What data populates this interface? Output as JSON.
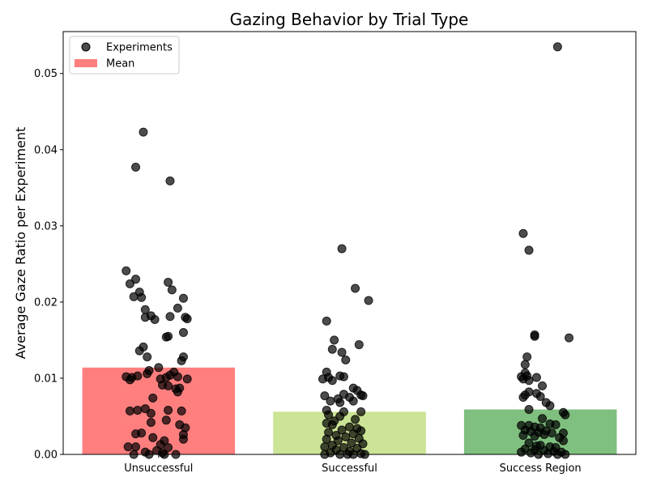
{
  "chart_data": {
    "type": "bar",
    "title": "Gazing Behavior by Trial Type",
    "xlabel": "",
    "ylabel": "Average Gaze Ratio per Experiment",
    "categories": [
      "Unsuccessful",
      "Successful",
      "Success Region"
    ],
    "ylim": [
      0,
      0.0555
    ],
    "yticks": [
      "0.00",
      "0.01",
      "0.02",
      "0.03",
      "0.04",
      "0.05"
    ],
    "grid": false,
    "legend_position": "top-left",
    "legend": [
      {
        "label": "Experiments",
        "marker": "circle",
        "color": "#000000"
      },
      {
        "label": "Mean",
        "marker": "rect",
        "color": "#ff7f7f"
      }
    ],
    "series": [
      {
        "name": "Mean",
        "kind": "bar",
        "values": [
          0.0114,
          0.0056,
          0.0059
        ]
      },
      {
        "name": "Experiments",
        "kind": "scatter",
        "points": [
          [
            [
              -0.08,
              0.0423
            ],
            [
              -0.12,
              0.0377
            ],
            [
              0.06,
              0.0359
            ],
            [
              -0.17,
              0.0241
            ],
            [
              -0.12,
              0.023
            ],
            [
              -0.15,
              0.0224
            ],
            [
              0.05,
              0.0226
            ],
            [
              -0.1,
              0.0213
            ],
            [
              0.07,
              0.0216
            ],
            [
              -0.13,
              0.0207
            ],
            [
              -0.09,
              0.0206
            ],
            [
              0.13,
              0.0205
            ],
            [
              -0.07,
              0.019
            ],
            [
              0.1,
              0.0192
            ],
            [
              -0.07,
              0.018
            ],
            [
              -0.04,
              0.0182
            ],
            [
              0.06,
              0.0181
            ],
            [
              0.14,
              0.018
            ],
            [
              -0.02,
              0.0177
            ],
            [
              0.15,
              0.0178
            ],
            [
              0.05,
              0.0155
            ],
            [
              0.04,
              0.0154
            ],
            [
              0.13,
              0.016
            ],
            [
              -0.08,
              0.0141
            ],
            [
              -0.1,
              0.0136
            ],
            [
              -0.06,
              0.0128
            ],
            [
              0.13,
              0.0128
            ],
            [
              0.12,
              0.0123
            ],
            [
              0.0,
              0.0114
            ],
            [
              -0.05,
              0.011
            ],
            [
              0.08,
              0.0108
            ],
            [
              -0.17,
              0.0102
            ],
            [
              -0.14,
              0.0101
            ],
            [
              -0.11,
              0.0103
            ],
            [
              -0.06,
              0.0106
            ],
            [
              0.01,
              0.0099
            ],
            [
              0.04,
              0.0101
            ],
            [
              0.06,
              0.0104
            ],
            [
              0.1,
              0.0102
            ],
            [
              0.15,
              0.0099
            ],
            [
              -0.15,
              0.0098
            ],
            [
              0.02,
              0.0091
            ],
            [
              0.05,
              0.009
            ],
            [
              0.09,
              0.0086
            ],
            [
              0.11,
              0.0087
            ],
            [
              0.1,
              0.0082
            ],
            [
              -0.03,
              0.0074
            ],
            [
              -0.15,
              0.0057
            ],
            [
              -0.11,
              0.0058
            ],
            [
              -0.07,
              0.006
            ],
            [
              -0.04,
              0.0054
            ],
            [
              0.05,
              0.0058
            ],
            [
              0.12,
              0.0057
            ],
            [
              0.04,
              0.0045
            ],
            [
              -0.04,
              0.0042
            ],
            [
              0.11,
              0.0039
            ],
            [
              0.14,
              0.0035
            ],
            [
              0.13,
              0.0026
            ],
            [
              0.13,
              0.002
            ],
            [
              -0.09,
              0.0028
            ],
            [
              -0.12,
              0.0027
            ],
            [
              -0.03,
              0.0022
            ],
            [
              0.03,
              0.0018
            ],
            [
              0.01,
              0.0013
            ],
            [
              -0.12,
              0.001
            ],
            [
              -0.16,
              0.001
            ],
            [
              0.05,
              0.0009
            ],
            [
              -0.01,
              0.0005
            ],
            [
              -0.07,
              0.0003
            ],
            [
              0.02,
              0.0002
            ],
            [
              -0.13,
              0.0
            ],
            [
              0.03,
              0.0
            ],
            [
              -0.05,
              0.0
            ],
            [
              0.09,
              0.0
            ]
          ],
          [
            [
              -0.04,
              0.027
            ],
            [
              0.03,
              0.0218
            ],
            [
              0.1,
              0.0202
            ],
            [
              -0.12,
              0.0175
            ],
            [
              -0.08,
              0.015
            ],
            [
              0.05,
              0.0144
            ],
            [
              -0.09,
              0.0138
            ],
            [
              -0.04,
              0.0134
            ],
            [
              -0.02,
              0.0124
            ],
            [
              -0.12,
              0.0108
            ],
            [
              -0.05,
              0.0103
            ],
            [
              -0.03,
              0.0102
            ],
            [
              -0.11,
              0.0101
            ],
            [
              -0.14,
              0.0099
            ],
            [
              -0.09,
              0.0097
            ],
            [
              0.02,
              0.0087
            ],
            [
              0.04,
              0.0084
            ],
            [
              -0.03,
              0.0079
            ],
            [
              0.06,
              0.0078
            ],
            [
              0.07,
              0.0077
            ],
            [
              -0.13,
              0.0077
            ],
            [
              0.0,
              0.0075
            ],
            [
              -0.06,
              0.0073
            ],
            [
              0.02,
              0.007
            ],
            [
              -0.1,
              0.007
            ],
            [
              -0.05,
              0.0068
            ],
            [
              -0.12,
              0.0058
            ],
            [
              -0.03,
              0.0056
            ],
            [
              0.06,
              0.0056
            ],
            [
              -0.11,
              0.0052
            ],
            [
              -0.05,
              0.005
            ],
            [
              0.03,
              0.0046
            ],
            [
              -0.08,
              0.0044
            ],
            [
              -0.12,
              0.0041
            ],
            [
              -0.09,
              0.0039
            ],
            [
              0.0,
              0.0036
            ],
            [
              0.04,
              0.0034
            ],
            [
              -0.04,
              0.0032
            ],
            [
              0.06,
              0.0031
            ],
            [
              -0.11,
              0.0029
            ],
            [
              0.02,
              0.0027
            ],
            [
              -0.07,
              0.0025
            ],
            [
              -0.02,
              0.0023
            ],
            [
              0.05,
              0.0021
            ],
            [
              -0.12,
              0.002
            ],
            [
              -0.06,
              0.0018
            ],
            [
              0.01,
              0.0015
            ],
            [
              0.07,
              0.0014
            ],
            [
              -0.09,
              0.0012
            ],
            [
              -0.13,
              0.001
            ],
            [
              -0.03,
              0.0009
            ],
            [
              0.04,
              0.0008
            ],
            [
              -0.07,
              0.0006
            ],
            [
              0.0,
              0.0004
            ],
            [
              -0.1,
              0.0002
            ],
            [
              0.06,
              0.0001
            ],
            [
              -0.05,
              0.0
            ],
            [
              0.02,
              0.0
            ],
            [
              0.08,
              0.0
            ],
            [
              -0.13,
              0.0
            ],
            [
              -0.01,
              0.0
            ]
          ],
          [
            [
              0.09,
              0.0535
            ],
            [
              -0.09,
              0.029
            ],
            [
              -0.06,
              0.0268
            ],
            [
              0.15,
              0.0153
            ],
            [
              -0.03,
              0.0157
            ],
            [
              -0.03,
              0.0155
            ],
            [
              -0.07,
              0.0128
            ],
            [
              -0.08,
              0.0118
            ],
            [
              -0.08,
              0.0107
            ],
            [
              -0.07,
              0.0103
            ],
            [
              -0.1,
              0.0102
            ],
            [
              -0.02,
              0.0101
            ],
            [
              -0.09,
              0.0099
            ],
            [
              -0.06,
              0.0097
            ],
            [
              0.01,
              0.009
            ],
            [
              -0.06,
              0.0082
            ],
            [
              -0.02,
              0.008
            ],
            [
              -0.08,
              0.0078
            ],
            [
              -0.09,
              0.0075
            ],
            [
              0.0,
              0.0076
            ],
            [
              0.03,
              0.0068
            ],
            [
              0.05,
              0.0064
            ],
            [
              -0.06,
              0.0059
            ],
            [
              0.12,
              0.0055
            ],
            [
              0.13,
              0.0052
            ],
            [
              0.01,
              0.0047
            ],
            [
              -0.1,
              0.0038
            ],
            [
              -0.06,
              0.0038
            ],
            [
              -0.03,
              0.0036
            ],
            [
              0.0,
              0.0035
            ],
            [
              0.05,
              0.004
            ],
            [
              0.08,
              0.0039
            ],
            [
              -0.08,
              0.0032
            ],
            [
              -0.05,
              0.003
            ],
            [
              -0.01,
              0.0029
            ],
            [
              0.03,
              0.0031
            ],
            [
              0.06,
              0.0028
            ],
            [
              0.12,
              0.0028
            ],
            [
              -0.09,
              0.0025
            ],
            [
              -0.03,
              0.0024
            ],
            [
              0.02,
              0.0026
            ],
            [
              0.1,
              0.0022
            ],
            [
              0.12,
              0.0018
            ],
            [
              -0.06,
              0.0015
            ],
            [
              0.0,
              0.0012
            ],
            [
              -0.02,
              0.0011
            ],
            [
              0.05,
              0.001
            ],
            [
              0.08,
              0.0009
            ],
            [
              -0.08,
              0.0007
            ],
            [
              -0.03,
              0.0006
            ],
            [
              0.02,
              0.0005
            ],
            [
              0.07,
              0.0004
            ],
            [
              0.11,
              0.0003
            ],
            [
              -0.1,
              0.0003
            ],
            [
              -0.05,
              0.0002
            ],
            [
              0.04,
              0.0001
            ],
            [
              -0.01,
              0.0
            ],
            [
              0.09,
              0.0
            ],
            [
              0.13,
              0.0
            ]
          ]
        ]
      }
    ],
    "colors": {
      "bars": [
        "#ff7f7f",
        "#cbe495",
        "#7fbf7f"
      ],
      "point_fill": "#000000",
      "point_opacity": 0.7,
      "axes": "#000000"
    }
  }
}
